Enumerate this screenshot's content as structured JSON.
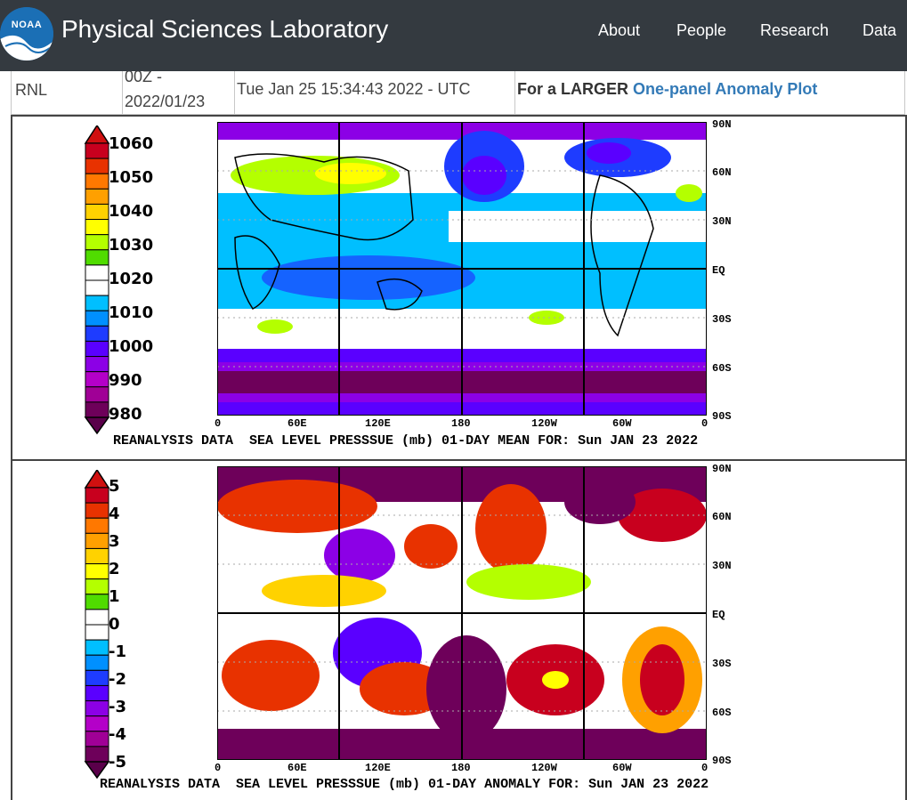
{
  "header": {
    "logo_text": "NOAA",
    "title": "Physical Sciences Laboratory",
    "nav": [
      "About",
      "People",
      "Research",
      "Data"
    ]
  },
  "info_row": {
    "c1": "RNL",
    "c2_top": "00Z -",
    "c2_bottom": "2022/01/23",
    "c3": "Tue Jan 25 15:34:43 2022 - UTC",
    "c4_prefix": "For a LARGER ",
    "c4_link": "One-panel Anomaly Plot"
  },
  "plots": {
    "mean": {
      "colorbar_labels": [
        "1060",
        "1050",
        "1040",
        "1030",
        "1020",
        "1010",
        "1000",
        "990",
        "980"
      ],
      "colorbar_colors": [
        "#c8001e",
        "#e83200",
        "#ff7800",
        "#ffa000",
        "#ffd200",
        "#ffff00",
        "#b4ff00",
        "#50dc00",
        "#ffffff",
        "#ffffff",
        "#00bfff",
        "#0090ff",
        "#1e3cff",
        "#5a00ff",
        "#8c00e6",
        "#b400c8",
        "#a00096",
        "#6e005a"
      ],
      "lat_labels": [
        "90N",
        "60N",
        "30N",
        "EQ",
        "30S",
        "60S",
        "90S"
      ],
      "lon_labels": [
        "0",
        "60E",
        "120E",
        "180",
        "120W",
        "60W",
        "0"
      ],
      "caption": "REANALYSIS DATA  SEA LEVEL PRESSSUE (mb) 01-DAY MEAN FOR: Sun JAN 23 2022"
    },
    "anomaly": {
      "colorbar_labels": [
        "5",
        "4",
        "3",
        "2",
        "1",
        "0",
        "-1",
        "-2",
        "-3",
        "-4",
        "-5"
      ],
      "colorbar_colors": [
        "#c8001e",
        "#e83200",
        "#ff7800",
        "#ffa000",
        "#ffd200",
        "#ffff00",
        "#b4ff00",
        "#50dc00",
        "#ffffff",
        "#ffffff",
        "#00bfff",
        "#0090ff",
        "#1e3cff",
        "#5a00ff",
        "#8c00e6",
        "#b400c8",
        "#a00096",
        "#6e005a"
      ],
      "lat_labels": [
        "90N",
        "60N",
        "30N",
        "EQ",
        "30S",
        "60S",
        "90S"
      ],
      "lon_labels": [
        "0",
        "60E",
        "120E",
        "180",
        "120W",
        "60W",
        "0"
      ],
      "caption": "REANALYSIS DATA  SEA LEVEL PRESSSUE (mb) 01-DAY ANOMALY FOR: Sun JAN 23 2022"
    }
  },
  "colors": {
    "header_bg": "#343a40",
    "link": "#337ab7"
  }
}
